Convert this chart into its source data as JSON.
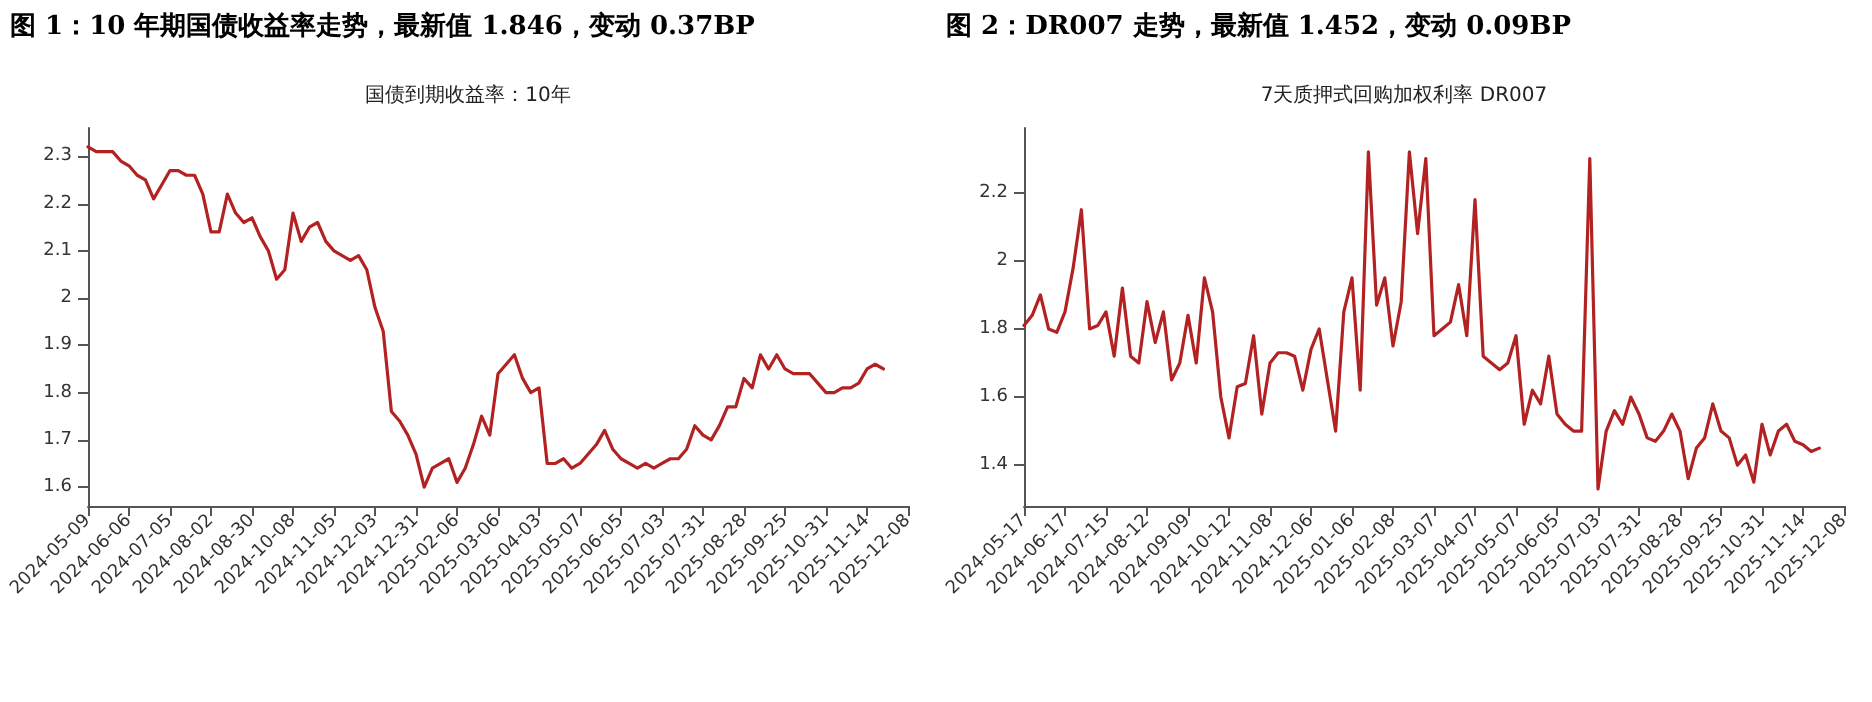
{
  "chart_data": [
    {
      "type": "line",
      "title": "图 1：10 年期国债收益率走势，最新值 1.846，变动 0.37BP",
      "subtitle": "国债到期收益率：10年",
      "categories": [
        "2024-05-09",
        null,
        null,
        null,
        null,
        "2024-06-06",
        null,
        null,
        null,
        null,
        "2024-07-05",
        null,
        null,
        null,
        null,
        "2024-08-02",
        null,
        null,
        null,
        null,
        "2024-08-30",
        null,
        null,
        null,
        null,
        "2024-10-08",
        null,
        null,
        null,
        null,
        "2024-11-05",
        null,
        null,
        null,
        null,
        "2024-12-03",
        null,
        null,
        null,
        null,
        "2024-12-31",
        null,
        null,
        null,
        null,
        "2025-02-06",
        null,
        null,
        null,
        null,
        "2025-03-06",
        null,
        null,
        null,
        null,
        "2025-04-03",
        null,
        null,
        null,
        null,
        "2025-05-07",
        null,
        null,
        null,
        null,
        "2025-06-05",
        null,
        null,
        null,
        null,
        "2025-07-03",
        null,
        null,
        null,
        null,
        "2025-07-31",
        null,
        null,
        null,
        null,
        "2025-08-28",
        null,
        null,
        null,
        null,
        "2025-09-25",
        null,
        null,
        null,
        null,
        "2025-10-31",
        null,
        null,
        null,
        null,
        "2025-11-14",
        null,
        null,
        null,
        null,
        "2025-12-08"
      ],
      "series": [
        {
          "color": "#b22222",
          "values": [
            2.32,
            2.31,
            2.31,
            2.31,
            2.29,
            2.28,
            2.26,
            2.25,
            2.21,
            2.24,
            2.27,
            2.27,
            2.26,
            2.26,
            2.22,
            2.14,
            2.14,
            2.22,
            2.18,
            2.16,
            2.17,
            2.13,
            2.1,
            2.04,
            2.06,
            2.18,
            2.12,
            2.15,
            2.16,
            2.12,
            2.1,
            2.09,
            2.08,
            2.09,
            2.06,
            1.98,
            1.93,
            1.76,
            1.74,
            1.71,
            1.67,
            1.6,
            1.64,
            1.65,
            1.66,
            1.61,
            1.64,
            1.69,
            1.75,
            1.71,
            1.84,
            1.86,
            1.88,
            1.83,
            1.8,
            1.81,
            1.65,
            1.65,
            1.66,
            1.64,
            1.65,
            1.67,
            1.69,
            1.72,
            1.68,
            1.66,
            1.65,
            1.64,
            1.65,
            1.64,
            1.65,
            1.66,
            1.66,
            1.68,
            1.73,
            1.71,
            1.7,
            1.73,
            1.77,
            1.77,
            1.83,
            1.81,
            1.88,
            1.85,
            1.88,
            1.85,
            1.84,
            1.84,
            1.84,
            1.82,
            1.8,
            1.8,
            1.81,
            1.81,
            1.82,
            1.85,
            1.86,
            1.85,
            null,
            null,
            null
          ]
        }
      ],
      "ylim": [
        1.56,
        2.36
      ],
      "yticks": [
        1.6,
        1.7,
        1.8,
        1.9,
        2.0,
        2.1,
        2.2,
        2.3
      ],
      "marker": "none",
      "line_style": "solid"
    },
    {
      "type": "line",
      "title": "图 2：DR007 走势，最新值 1.452，变动 0.09BP",
      "subtitle": "7天质押式回购加权利率 DR007",
      "categories": [
        "2024-05-17",
        null,
        null,
        null,
        null,
        "2024-06-17",
        null,
        null,
        null,
        null,
        "2024-07-15",
        null,
        null,
        null,
        null,
        "2024-08-12",
        null,
        null,
        null,
        null,
        "2024-09-09",
        null,
        null,
        null,
        null,
        "2024-10-12",
        null,
        null,
        null,
        null,
        "2024-11-08",
        null,
        null,
        null,
        null,
        "2024-12-06",
        null,
        null,
        null,
        null,
        "2025-01-06",
        null,
        null,
        null,
        null,
        "2025-02-08",
        null,
        null,
        null,
        null,
        "2025-03-07",
        null,
        null,
        null,
        null,
        "2025-04-07",
        null,
        null,
        null,
        null,
        "2025-05-07",
        null,
        null,
        null,
        null,
        "2025-06-05",
        null,
        null,
        null,
        null,
        "2025-07-03",
        null,
        null,
        null,
        null,
        "2025-07-31",
        null,
        null,
        null,
        null,
        "2025-08-28",
        null,
        null,
        null,
        null,
        "2025-09-25",
        null,
        null,
        null,
        null,
        "2025-10-31",
        null,
        null,
        null,
        null,
        "2025-11-14",
        null,
        null,
        null,
        null,
        "2025-12-08"
      ],
      "series": [
        {
          "color": "#b22222",
          "values": [
            1.81,
            1.84,
            1.9,
            1.8,
            1.79,
            1.85,
            1.98,
            2.15,
            1.8,
            1.81,
            1.85,
            1.72,
            1.92,
            1.72,
            1.7,
            1.88,
            1.76,
            1.85,
            1.65,
            1.7,
            1.84,
            1.7,
            1.95,
            1.85,
            1.6,
            1.48,
            1.63,
            1.64,
            1.78,
            1.55,
            1.7,
            1.73,
            1.73,
            1.72,
            1.62,
            1.74,
            1.8,
            1.65,
            1.5,
            1.85,
            1.95,
            1.62,
            2.32,
            1.87,
            1.95,
            1.75,
            1.88,
            2.32,
            2.08,
            2.3,
            1.78,
            1.8,
            1.82,
            1.93,
            1.78,
            2.18,
            1.72,
            1.7,
            1.68,
            1.7,
            1.78,
            1.52,
            1.62,
            1.58,
            1.72,
            1.55,
            1.52,
            1.5,
            1.5,
            2.3,
            1.33,
            1.5,
            1.56,
            1.52,
            1.6,
            1.55,
            1.48,
            1.47,
            1.5,
            1.55,
            1.5,
            1.36,
            1.45,
            1.48,
            1.58,
            1.5,
            1.48,
            1.4,
            1.43,
            1.35,
            1.52,
            1.43,
            1.5,
            1.52,
            1.47,
            1.46,
            1.44,
            1.45,
            null,
            null,
            null
          ]
        }
      ],
      "ylim": [
        1.28,
        2.39
      ],
      "yticks": [
        1.4,
        1.6,
        1.8,
        2.0,
        2.2
      ],
      "marker": "none",
      "line_style": "solid"
    }
  ]
}
